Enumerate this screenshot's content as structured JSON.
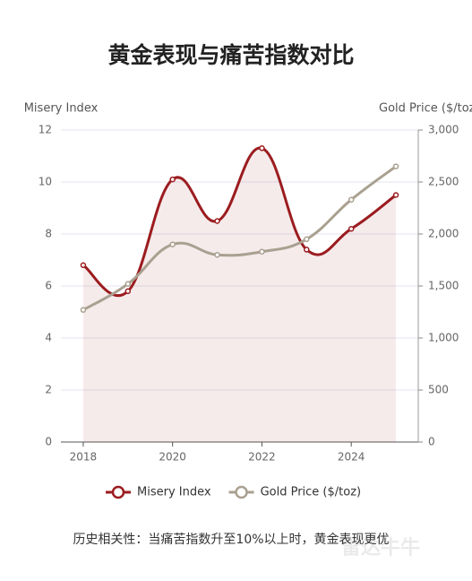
{
  "chart_data": {
    "type": "line",
    "title": "黄金表现与痛苦指数对比",
    "y_label": "Misery Index",
    "y2_label": "Gold Price ($/toz)",
    "x": [
      2018,
      2019,
      2020,
      2021,
      2022,
      2023,
      2024,
      2025
    ],
    "xlim": [
      2017.5,
      2025.5
    ],
    "xticks": [
      2018,
      2020,
      2022,
      2024
    ],
    "ylim": [
      0,
      12
    ],
    "yticks": [
      0,
      2,
      4,
      6,
      8,
      10,
      12
    ],
    "y2lim": [
      0,
      3000
    ],
    "y2ticks": [
      0,
      500,
      {
        "value": 1000,
        "label": "1,000"
      },
      {
        "value": 1500,
        "label": "1,500"
      },
      {
        "value": 2000,
        "label": "2,000"
      },
      {
        "value": 2500,
        "label": "2,500"
      },
      {
        "value": 3000,
        "label": "3,000"
      }
    ],
    "grid": true,
    "series": [
      {
        "name": "Misery Index",
        "color": "#9b1c1f",
        "values": [
          6.8,
          5.8,
          10.1,
          8.5,
          11.3,
          7.4,
          8.2,
          9.5
        ],
        "area": true
      },
      {
        "name": "Gold Price ($/toz)",
        "color": "#a9a090",
        "axis": "y2",
        "values": [
          1270,
          1520,
          1900,
          1800,
          1830,
          1950,
          2330,
          2650
        ]
      }
    ],
    "note": "历史相关性：当痛苦指数升至10%以上时，黄金表现更优",
    "watermark": "雷达牛牛"
  }
}
